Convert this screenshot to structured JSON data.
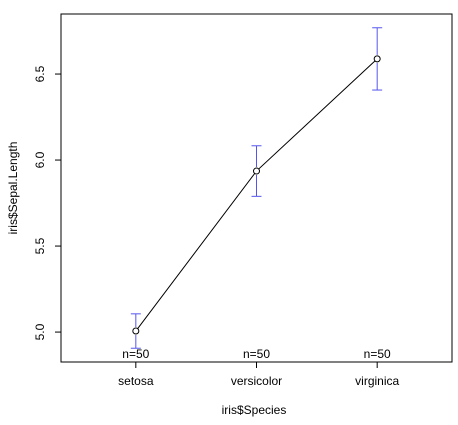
{
  "chart_data": {
    "type": "line",
    "x_label": "iris$Species",
    "y_label": "iris$Sepal.Length",
    "categories": [
      "setosa",
      "versicolor",
      "virginica"
    ],
    "series": [
      {
        "color": "#000000",
        "error_color": "#5555ee",
        "values": [
          5.006,
          5.936,
          6.588
        ],
        "errors": [
          0.1,
          0.147,
          0.181
        ]
      }
    ],
    "annotations": [
      "n=50",
      "n=50",
      "n=50"
    ],
    "ylim": [
      4.826,
      6.849
    ],
    "yticks": [
      {
        "value": 5.0,
        "label": "5.0"
      },
      {
        "value": 5.5,
        "label": "5.5"
      },
      {
        "value": 6.0,
        "label": "6.0"
      },
      {
        "value": 6.5,
        "label": "6.5"
      }
    ]
  }
}
